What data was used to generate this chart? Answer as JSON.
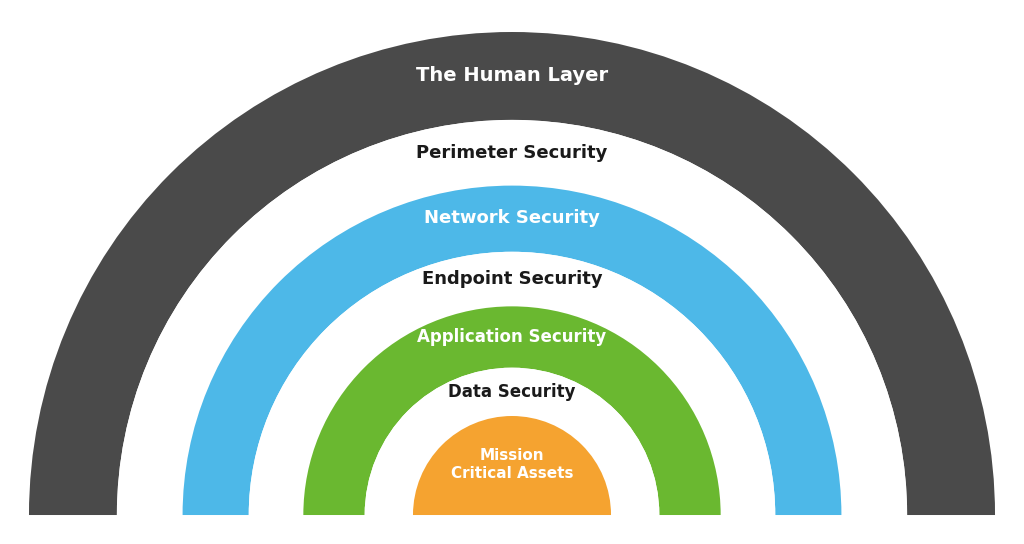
{
  "background_color": "#ffffff",
  "layers": [
    {
      "label": "The Human Layer",
      "outer_r": 1.0,
      "inner_r": 0.818,
      "color": "#4a4a4a",
      "text_color": "#ffffff",
      "text_r": 0.909,
      "fontsize": 14,
      "bold": true
    },
    {
      "label": "Perimeter Security",
      "outer_r": 0.818,
      "inner_r": 0.682,
      "color": "#ffffff",
      "text_color": "#1a1a1a",
      "text_r": 0.75,
      "fontsize": 13,
      "bold": true
    },
    {
      "label": "Network Security",
      "outer_r": 0.682,
      "inner_r": 0.545,
      "color": "#4db8e8",
      "text_color": "#ffffff",
      "text_r": 0.614,
      "fontsize": 13,
      "bold": true
    },
    {
      "label": "Endpoint Security",
      "outer_r": 0.545,
      "inner_r": 0.432,
      "color": "#ffffff",
      "text_color": "#1a1a1a",
      "text_r": 0.489,
      "fontsize": 13,
      "bold": true
    },
    {
      "label": "Application Security",
      "outer_r": 0.432,
      "inner_r": 0.305,
      "color": "#6ab830",
      "text_color": "#ffffff",
      "text_r": 0.369,
      "fontsize": 12,
      "bold": true
    },
    {
      "label": "Data Security",
      "outer_r": 0.305,
      "inner_r": 0.205,
      "color": "#ffffff",
      "text_color": "#1a1a1a",
      "text_r": 0.255,
      "fontsize": 12,
      "bold": true
    },
    {
      "label": "Mission\nCritical Assets",
      "outer_r": 0.205,
      "inner_r": 0.0,
      "color": "#f5a330",
      "text_color": "#ffffff",
      "text_r": 0.105,
      "fontsize": 11,
      "bold": true
    }
  ]
}
